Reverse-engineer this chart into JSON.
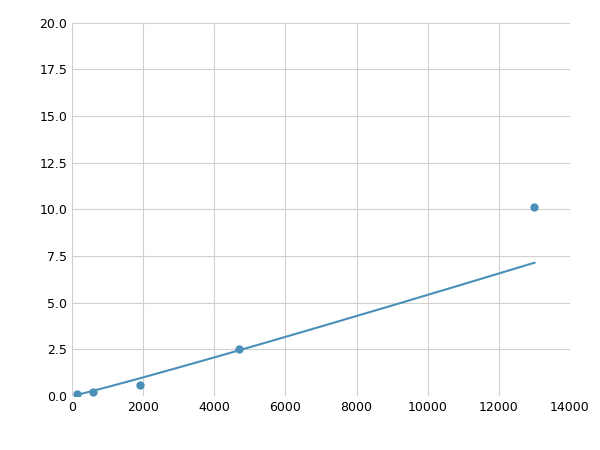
{
  "x": [
    150,
    600,
    1900,
    4700,
    13000
  ],
  "y": [
    0.1,
    0.2,
    0.6,
    2.5,
    10.1
  ],
  "line_color": "#4a90b8",
  "marker_color": "#4a90b8",
  "marker_size": 6,
  "line_width": 1.5,
  "xlim": [
    0,
    14000
  ],
  "ylim": [
    0,
    20.0
  ],
  "xticks": [
    0,
    2000,
    4000,
    6000,
    8000,
    10000,
    12000,
    14000
  ],
  "yticks": [
    0.0,
    2.5,
    5.0,
    7.5,
    10.0,
    12.5,
    15.0,
    17.5,
    20.0
  ],
  "grid_color": "#d0d0d0",
  "background_color": "#ffffff",
  "fig_width": 6.0,
  "fig_height": 4.5,
  "dpi": 100
}
